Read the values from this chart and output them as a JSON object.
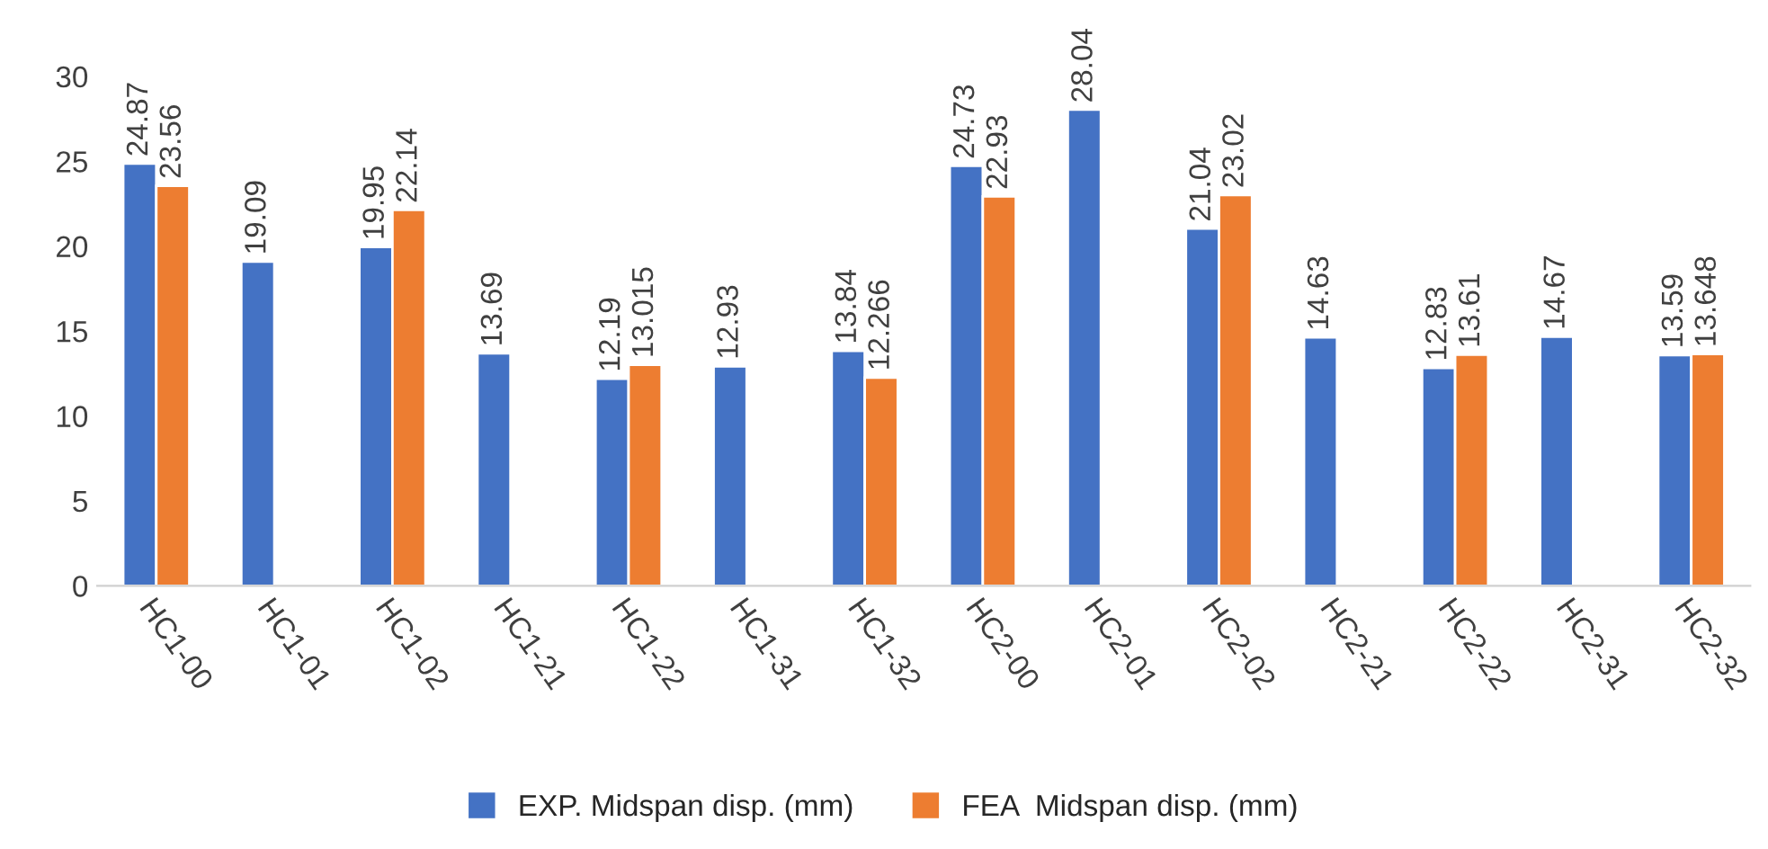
{
  "chart_data": {
    "type": "bar",
    "categories": [
      "HC1-00",
      "HC1-01",
      "HC1-02",
      "HC1-21",
      "HC1-22",
      "HC1-31",
      "HC1-32",
      "HC2-00",
      "HC2-01",
      "HC2-02",
      "HC2-21",
      "HC2-22",
      "HC2-31",
      "HC2-32"
    ],
    "series": [
      {
        "name": "EXP. Midspan disp. (mm)",
        "color": "#4472c4",
        "values": [
          24.87,
          19.09,
          19.95,
          13.69,
          12.19,
          12.93,
          13.84,
          24.73,
          28.04,
          21.04,
          14.63,
          12.83,
          14.67,
          13.59
        ]
      },
      {
        "name": "FEA  Midspan disp. (mm)",
        "color": "#ed7d31",
        "values": [
          23.56,
          null,
          22.14,
          null,
          13.015,
          null,
          12.266,
          22.93,
          null,
          23.02,
          null,
          13.61,
          null,
          13.648
        ]
      }
    ],
    "ylim": [
      0,
      30
    ],
    "yticks": [
      0,
      5,
      10,
      15,
      20,
      25,
      30
    ],
    "data_labels": true,
    "grid": false,
    "legend": "bottom"
  }
}
